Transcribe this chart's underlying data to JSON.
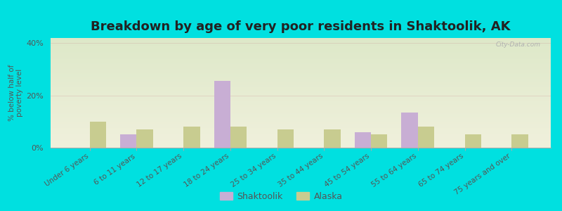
{
  "title": "Breakdown by age of very poor residents in Shaktoolik, AK",
  "ylabel": "% below half of\npoverty level",
  "categories": [
    "Under 6 years",
    "6 to 11 years",
    "12 to 17 years",
    "18 to 24 years",
    "25 to 34 years",
    "35 to 44 years",
    "45 to 54 years",
    "55 to 64 years",
    "65 to 74 years",
    "75 years and over"
  ],
  "shaktoolik": [
    0,
    5.0,
    0,
    25.5,
    0,
    0,
    6.0,
    13.5,
    0,
    0
  ],
  "alaska": [
    10.0,
    7.0,
    8.0,
    8.0,
    7.0,
    7.0,
    5.0,
    8.0,
    5.0,
    5.0
  ],
  "shaktoolik_color": "#c8aed4",
  "alaska_color": "#c8cc90",
  "background_top": "#dde8c8",
  "background_bottom": "#f0f0dc",
  "outer_bg": "#00e0e0",
  "ylim": [
    0,
    42
  ],
  "yticks": [
    0,
    20,
    40
  ],
  "ytick_labels": [
    "0%",
    "20%",
    "40%"
  ],
  "bar_width": 0.35,
  "title_fontsize": 13,
  "label_fontsize": 7.5,
  "tick_fontsize": 8,
  "legend_shaktoolik": "Shaktoolik",
  "legend_alaska": "Alaska",
  "watermark": "City-Data.com"
}
